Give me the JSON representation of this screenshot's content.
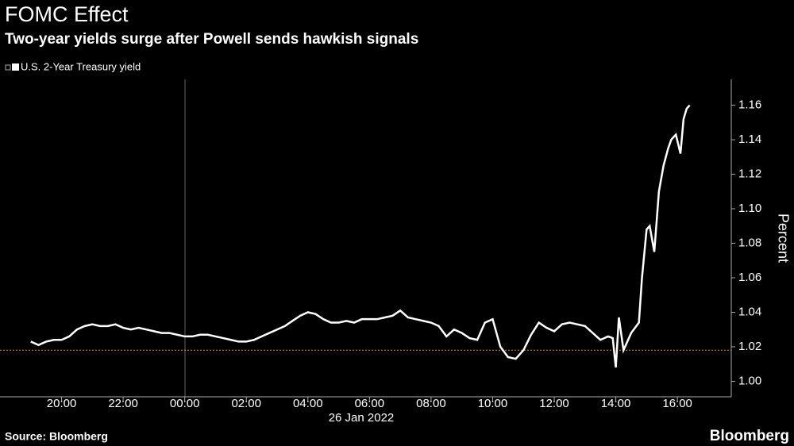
{
  "chart_data": {
    "type": "line",
    "title": "FOMC Effect",
    "subtitle": "Two-year yields surge after Powell sends hawkish signals",
    "y_axis_label": "Percent",
    "date_label": "26 Jan 2022",
    "source": "Source: Bloomberg",
    "brand": "Bloomberg",
    "reference_line": {
      "value": 1.018,
      "color": "#e08a2c"
    },
    "x": [
      -5.0,
      -4.75,
      -4.5,
      -4.25,
      -4.0,
      -3.75,
      -3.5,
      -3.25,
      -3.0,
      -2.75,
      -2.5,
      -2.25,
      -2.0,
      -1.75,
      -1.5,
      -1.25,
      -1.0,
      -0.75,
      -0.5,
      -0.25,
      0,
      0.25,
      0.5,
      0.75,
      1.0,
      1.25,
      1.5,
      1.75,
      2.0,
      2.25,
      2.5,
      2.75,
      3.0,
      3.25,
      3.5,
      3.75,
      4.0,
      4.25,
      4.5,
      4.75,
      5.0,
      5.25,
      5.5,
      5.75,
      6.0,
      6.25,
      6.5,
      6.75,
      7.0,
      7.25,
      7.5,
      7.75,
      8.0,
      8.25,
      8.5,
      8.75,
      9.0,
      9.25,
      9.5,
      9.75,
      10.0,
      10.25,
      10.5,
      10.75,
      11.0,
      11.25,
      11.5,
      11.75,
      12.0,
      12.25,
      12.5,
      12.75,
      13.0,
      13.25,
      13.5,
      13.75,
      13.9,
      14.0,
      14.1,
      14.25,
      14.5,
      14.75,
      14.85,
      15.0,
      15.1,
      15.25,
      15.4,
      15.55,
      15.7,
      15.8,
      15.95,
      16.1,
      16.2,
      16.3,
      16.4
    ],
    "series": [
      {
        "name": "U.S. 2-Year Treasury yield",
        "color": "#ffffff",
        "values": [
          1.023,
          1.021,
          1.023,
          1.024,
          1.024,
          1.026,
          1.03,
          1.032,
          1.033,
          1.032,
          1.032,
          1.033,
          1.031,
          1.03,
          1.031,
          1.03,
          1.029,
          1.028,
          1.028,
          1.027,
          1.026,
          1.026,
          1.027,
          1.027,
          1.026,
          1.025,
          1.024,
          1.023,
          1.023,
          1.024,
          1.026,
          1.028,
          1.03,
          1.032,
          1.035,
          1.038,
          1.04,
          1.039,
          1.036,
          1.034,
          1.034,
          1.035,
          1.034,
          1.036,
          1.036,
          1.036,
          1.037,
          1.038,
          1.041,
          1.037,
          1.036,
          1.035,
          1.034,
          1.032,
          1.026,
          1.03,
          1.028,
          1.025,
          1.024,
          1.034,
          1.036,
          1.02,
          1.014,
          1.013,
          1.018,
          1.027,
          1.034,
          1.031,
          1.029,
          1.033,
          1.034,
          1.033,
          1.032,
          1.028,
          1.024,
          1.026,
          1.025,
          1.008,
          1.037,
          1.018,
          1.028,
          1.034,
          1.06,
          1.088,
          1.09,
          1.075,
          1.11,
          1.125,
          1.135,
          1.14,
          1.143,
          1.132,
          1.152,
          1.158,
          1.16
        ]
      }
    ],
    "xlim": [
      -6,
      17.75
    ],
    "xticks": [
      {
        "value": -4,
        "label": "20:00"
      },
      {
        "value": -2,
        "label": "22:00"
      },
      {
        "value": 0,
        "label": "00:00"
      },
      {
        "value": 2,
        "label": "02:00"
      },
      {
        "value": 4,
        "label": "04:00"
      },
      {
        "value": 6,
        "label": "06:00"
      },
      {
        "value": 8,
        "label": "08:00"
      },
      {
        "value": 10,
        "label": "10:00"
      },
      {
        "value": 12,
        "label": "12:00"
      },
      {
        "value": 14,
        "label": "14:00"
      },
      {
        "value": 16,
        "label": "16:00"
      }
    ],
    "ylim": [
      0.991,
      1.175
    ],
    "yticks": [
      {
        "value": 1.0,
        "label": "1.00"
      },
      1.02,
      1.04,
      1.06,
      1.08,
      {
        "value": 1.1,
        "label": "1.10"
      },
      1.12,
      1.14,
      1.16
    ]
  }
}
